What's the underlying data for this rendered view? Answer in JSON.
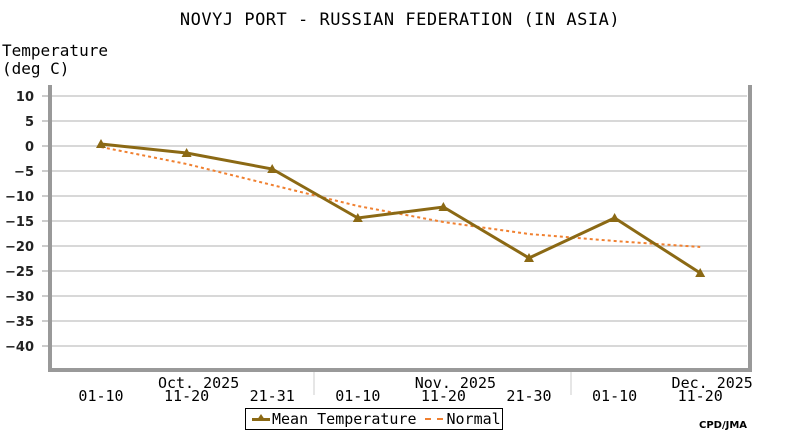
{
  "header": {
    "title": "NOVYJ PORT - RUSSIAN FEDERATION (IN ASIA)",
    "ylabel_line1": "Temperature",
    "ylabel_line2": "(deg C)"
  },
  "legend": {
    "mean_label": "Mean Temperature",
    "normal_label": "Normal"
  },
  "credit": "CPD/JMA",
  "colors": {
    "mean": "#8b6914",
    "normal": "#f08030",
    "grid": "#cccccc",
    "frame": "#999999"
  },
  "chart_data": {
    "type": "line",
    "title": "NOVYJ PORT - RUSSIAN FEDERATION (IN ASIA)",
    "xlabel": "",
    "ylabel": "Temperature (deg C)",
    "ylim": [
      -45,
      10
    ],
    "yticks": [
      10,
      5,
      0,
      -5,
      -10,
      -15,
      -20,
      -25,
      -30,
      -35,
      -40
    ],
    "grid": true,
    "legend_position": "bottom",
    "categories": [
      "01-10",
      "11-20",
      "21-31",
      "01-10",
      "11-20",
      "21-30",
      "01-10",
      "11-20"
    ],
    "month_labels": [
      {
        "label": "Oct. 2025",
        "index": 1
      },
      {
        "label": "Nov. 2025",
        "index": 4
      },
      {
        "label": "Dec. 2025",
        "index": 7
      }
    ],
    "series": [
      {
        "name": "Mean Temperature",
        "values": [
          0.4,
          -1.4,
          -4.6,
          -14.4,
          -12.2,
          -22.4,
          -14.4,
          -25.4
        ],
        "style": "solid line with triangle markers"
      },
      {
        "name": "Normal",
        "values": [
          -0.2,
          -3.6,
          -7.8,
          -12.0,
          -15.2,
          -17.6,
          -19.0,
          -20.2
        ],
        "style": "dashed"
      }
    ]
  }
}
